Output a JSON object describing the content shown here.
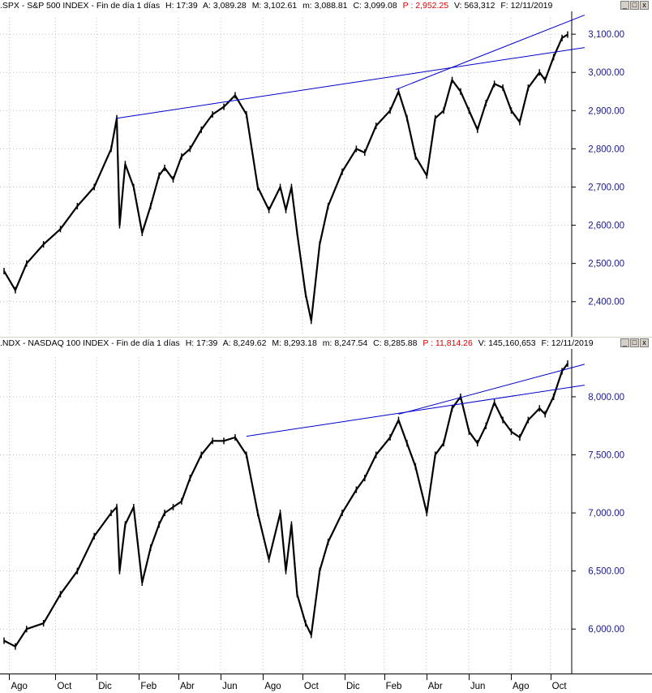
{
  "panels": [
    {
      "header": {
        "name": ".SPX - S&P 500 INDEX - Fin de día 1 días",
        "h": "H: 17:39",
        "a": "A: 3,089.28",
        "m": "M: 3,102.61",
        "mn": "m: 3,088.81",
        "c": "C: 3,099.08",
        "p": "P : 2,952.25",
        "v": "V: 563,312",
        "f": "F: 12/11/2019"
      }
    },
    {
      "header": {
        "name": ".NDX - NASDAQ 100 INDEX - Fin de día 1 días",
        "h": "H: 17:39",
        "a": "A: 8,249.62",
        "m": "M: 8,293.18",
        "mn": "m: 8,247.54",
        "c": "C: 8,285.88",
        "p": "P : 11,814.26",
        "v": "V: 145,160,653",
        "f": "F: 12/11/2019"
      }
    }
  ],
  "window_buttons": {
    "minimize": "_",
    "maximize": "□",
    "close": "x"
  },
  "colors": {
    "price": "#000000",
    "trendline": "#0000cc",
    "grid": "#c0c0c0",
    "axis_text": "#1a1a80",
    "red_value": "#e00000"
  },
  "chart_data": [
    {
      "type": "line",
      "title": ".SPX - S&P 500 INDEX",
      "grid": true,
      "ylim": [
        2340,
        3130
      ],
      "yticks": [
        "2,400.00",
        "2,500.00",
        "2,600.00",
        "2,700.00",
        "2,800.00",
        "2,900.00",
        "3,000.00",
        "3,100.00"
      ],
      "ytick_values": [
        2400,
        2500,
        2600,
        2700,
        2800,
        2900,
        3000,
        3100
      ],
      "x": [
        0,
        0.02,
        0.04,
        0.07,
        0.1,
        0.13,
        0.16,
        0.19,
        0.2,
        0.205,
        0.215,
        0.23,
        0.245,
        0.26,
        0.275,
        0.285,
        0.3,
        0.315,
        0.33,
        0.35,
        0.37,
        0.39,
        0.41,
        0.43,
        0.45,
        0.47,
        0.49,
        0.5,
        0.51,
        0.52,
        0.535,
        0.545,
        0.56,
        0.575,
        0.6,
        0.625,
        0.64,
        0.66,
        0.685,
        0.7,
        0.715,
        0.73,
        0.75,
        0.765,
        0.78,
        0.795,
        0.81,
        0.825,
        0.84,
        0.855,
        0.87,
        0.885,
        0.9,
        0.915,
        0.93,
        0.95,
        0.96,
        0.975,
        0.99,
        1.0
      ],
      "values": [
        2480,
        2430,
        2500,
        2550,
        2590,
        2650,
        2700,
        2800,
        2880,
        2600,
        2760,
        2700,
        2580,
        2650,
        2730,
        2750,
        2720,
        2780,
        2800,
        2850,
        2890,
        2910,
        2940,
        2890,
        2700,
        2640,
        2700,
        2640,
        2700,
        2580,
        2420,
        2350,
        2550,
        2650,
        2740,
        2800,
        2790,
        2860,
        2900,
        2950,
        2880,
        2780,
        2730,
        2880,
        2900,
        2980,
        2950,
        2900,
        2850,
        2920,
        2970,
        2960,
        2900,
        2870,
        2960,
        3000,
        2980,
        3040,
        3090,
        3099
      ],
      "trendlines": [
        {
          "x": [
            0.2,
            1.03
          ],
          "y": [
            2880,
            3065
          ]
        },
        {
          "x": [
            0.695,
            1.03
          ],
          "y": [
            2955,
            3150
          ]
        }
      ]
    },
    {
      "type": "line",
      "title": ".NDX - NASDAQ 100 INDEX",
      "grid": true,
      "ylim": [
        5750,
        8300
      ],
      "yticks": [
        "6,000.00",
        "6,500.00",
        "7,000.00",
        "7,500.00",
        "8,000.00"
      ],
      "ytick_values": [
        6000,
        6500,
        7000,
        7500,
        8000
      ],
      "x": [
        0,
        0.02,
        0.04,
        0.07,
        0.1,
        0.13,
        0.16,
        0.19,
        0.2,
        0.205,
        0.215,
        0.23,
        0.245,
        0.26,
        0.275,
        0.285,
        0.3,
        0.315,
        0.33,
        0.35,
        0.37,
        0.39,
        0.41,
        0.43,
        0.45,
        0.47,
        0.49,
        0.5,
        0.51,
        0.52,
        0.535,
        0.545,
        0.56,
        0.575,
        0.6,
        0.625,
        0.64,
        0.66,
        0.685,
        0.7,
        0.715,
        0.73,
        0.75,
        0.765,
        0.78,
        0.795,
        0.81,
        0.825,
        0.84,
        0.855,
        0.87,
        0.885,
        0.9,
        0.915,
        0.93,
        0.95,
        0.96,
        0.975,
        0.99,
        1.0
      ],
      "values": [
        5900,
        5850,
        6000,
        6050,
        6300,
        6500,
        6800,
        7000,
        7050,
        6500,
        6900,
        7050,
        6400,
        6700,
        6900,
        7000,
        7050,
        7100,
        7300,
        7500,
        7620,
        7620,
        7650,
        7500,
        7000,
        6600,
        7000,
        6500,
        6900,
        6300,
        6050,
        5950,
        6500,
        6750,
        7000,
        7200,
        7300,
        7500,
        7650,
        7800,
        7600,
        7400,
        7000,
        7500,
        7600,
        7900,
        8000,
        7700,
        7600,
        7750,
        7950,
        7800,
        7700,
        7650,
        7800,
        7900,
        7850,
        8000,
        8220,
        8285
      ],
      "trendlines": [
        {
          "x": [
            0.43,
            1.03
          ],
          "y": [
            7660,
            8100
          ]
        },
        {
          "x": [
            0.7,
            1.03
          ],
          "y": [
            7850,
            8280
          ]
        }
      ]
    }
  ],
  "x_axis": {
    "months": [
      "Ago",
      "Oct",
      "Dic",
      "Feb",
      "Abr",
      "Jun",
      "Ago",
      "Oct",
      "Dic",
      "Feb",
      "Abr",
      "Jun",
      "Ago",
      "Oct"
    ],
    "month_positions": [
      0.005,
      0.087,
      0.16,
      0.235,
      0.305,
      0.38,
      0.455,
      0.525,
      0.6,
      0.67,
      0.745,
      0.82,
      0.895,
      0.965
    ]
  }
}
